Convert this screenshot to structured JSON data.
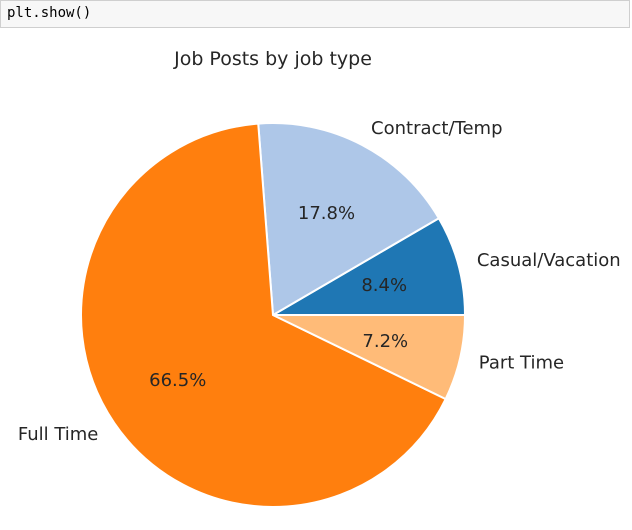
{
  "code_cell": {
    "source": "plt.show()"
  },
  "chart_data": {
    "type": "pie",
    "title": "Job Posts by job type",
    "slices": [
      {
        "label": "Casual/Vacation",
        "value": 8.4,
        "pct_label": "8.4%",
        "color": "#1f77b4"
      },
      {
        "label": "Contract/Temp",
        "value": 17.8,
        "pct_label": "17.8%",
        "color": "#aec7e8"
      },
      {
        "label": "Full Time",
        "value": 66.5,
        "pct_label": "66.5%",
        "color": "#ff7f0e"
      },
      {
        "label": "Part Time",
        "value": 7.2,
        "pct_label": "7.2%",
        "color": "#ffbb78"
      }
    ],
    "start_angle_deg": 0,
    "direction": "counterclockwise",
    "legend": "none"
  }
}
